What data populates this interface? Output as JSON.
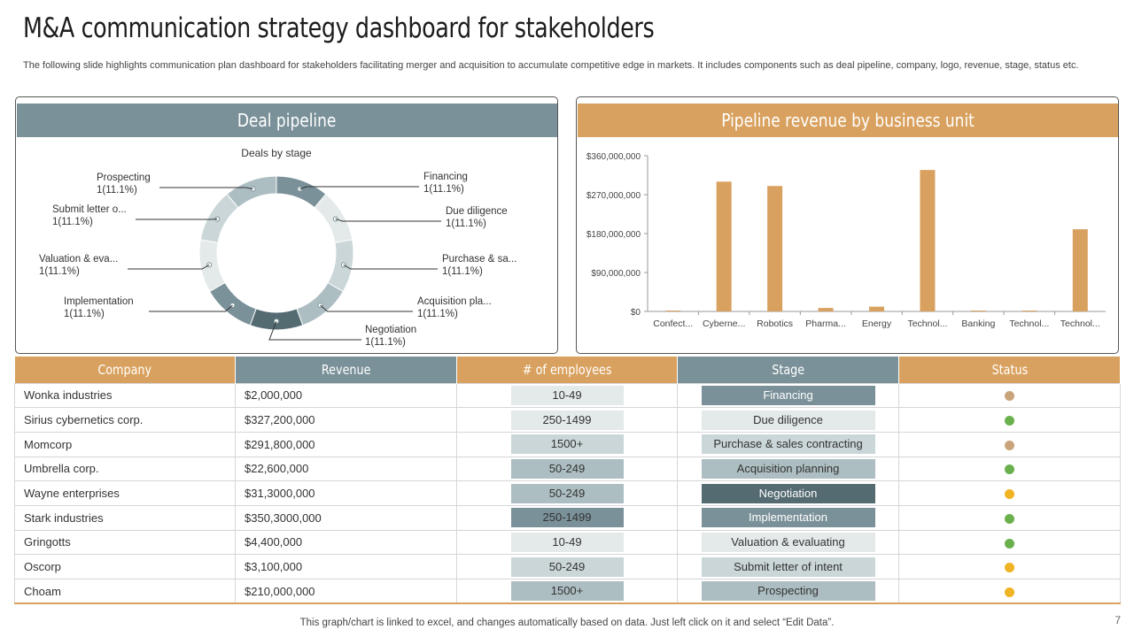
{
  "title": "M&A communication strategy dashboard for stakeholders",
  "subtitle": "The following slide highlights communication plan dashboard for stakeholders facilitating merger and acquisition to accumulate competitive edge in markets. It includes components such as deal pipeline, company, logo, revenue, stage, status etc.",
  "deal_pipeline": {
    "header": "Deal pipeline",
    "chart_title": "Deals by stage"
  },
  "revenue_panel": {
    "header": "Pipeline revenue by business unit"
  },
  "chart_data": [
    {
      "type": "pie",
      "title": "Deals by stage",
      "slices": [
        {
          "label": "Financing",
          "value": 1,
          "pct": "1(11.1%)",
          "color": "#7a9199"
        },
        {
          "label": "Due diligence",
          "value": 1,
          "pct": "1(11.1%)",
          "color": "#e4e9ea"
        },
        {
          "label": "Purchase & sa...",
          "value": 1,
          "pct": "1(11.1%)",
          "color": "#cad6d8"
        },
        {
          "label": "Acquisition pla...",
          "value": 1,
          "pct": "1(11.1%)",
          "color": "#adbec2"
        },
        {
          "label": "Negotiation",
          "value": 1,
          "pct": "1(11.1%)",
          "color": "#546b72"
        },
        {
          "label": "Implementation",
          "value": 1,
          "pct": "1(11.1%)",
          "color": "#7a9199"
        },
        {
          "label": "Valuation & eva...",
          "value": 1,
          "pct": "1(11.1%)",
          "color": "#e4e9ea"
        },
        {
          "label": "Submit letter o...",
          "value": 1,
          "pct": "1(11.1%)",
          "color": "#cad6d8"
        },
        {
          "label": "Prospecting",
          "value": 1,
          "pct": "1(11.1%)",
          "color": "#adbec2"
        }
      ]
    },
    {
      "type": "bar",
      "title": "Pipeline revenue by business unit",
      "categories": [
        "Confect...",
        "Cyberne...",
        "Robotics",
        "Pharma...",
        "Energy",
        "Technol...",
        "Banking",
        "Technol...",
        "Technol..."
      ],
      "values": [
        2000000,
        300000000,
        290000000,
        8000000,
        11000000,
        327000000,
        2000000,
        2000000,
        190000000
      ],
      "ylim": [
        0,
        360000000
      ],
      "yticks": [
        0,
        90000000,
        180000000,
        270000000,
        360000000
      ],
      "ytick_labels": [
        "$0",
        "$90,000,000",
        "$180,000,000",
        "$270,000,000",
        "$360,000,000"
      ],
      "color": "#d9a15f"
    }
  ],
  "table": {
    "headers": [
      "Company",
      "Revenue",
      "# of employees",
      "Stage",
      "Status"
    ],
    "rows": [
      {
        "company": "Wonka industries",
        "revenue": "$2,000,000",
        "employees": "10-49",
        "emp_color": "#e4e9ea",
        "stage": "Financing",
        "stage_color": "#7a9199",
        "stage_text": "#ffffff",
        "status_color": "#c9a37c"
      },
      {
        "company": "Sirius cybernetics corp.",
        "revenue": "$327,200,000",
        "employees": "250-1499",
        "emp_color": "#e4e9ea",
        "stage": "Due diligence",
        "stage_color": "#e4e9ea",
        "stage_text": "#333333",
        "status_color": "#6ab04c"
      },
      {
        "company": "Momcorp",
        "revenue": "$291,800,000",
        "employees": "1500+",
        "emp_color": "#cad6d8",
        "stage": "Purchase & sales contracting",
        "stage_color": "#cad6d8",
        "stage_text": "#333333",
        "status_color": "#c9a37c"
      },
      {
        "company": "Umbrella corp.",
        "revenue": "$22,600,000",
        "employees": "50-249",
        "emp_color": "#adbec2",
        "stage": "Acquisition planning",
        "stage_color": "#adbec2",
        "stage_text": "#333333",
        "status_color": "#6ab04c"
      },
      {
        "company": "Wayne enterprises",
        "revenue": "$31,3000,000",
        "employees": "50-249",
        "emp_color": "#adbec2",
        "stage": "Negotiation",
        "stage_color": "#546b72",
        "stage_text": "#ffffff",
        "status_color": "#f0b323"
      },
      {
        "company": "Stark industries",
        "revenue": "$350,3000,000",
        "employees": "250-1499",
        "emp_color": "#7a9199",
        "stage": "Implementation",
        "stage_color": "#7a9199",
        "stage_text": "#ffffff",
        "status_color": "#6ab04c"
      },
      {
        "company": "Gringotts",
        "revenue": "$4,400,000",
        "employees": "10-49",
        "emp_color": "#e4e9ea",
        "stage": "Valuation & evaluating",
        "stage_color": "#e4e9ea",
        "stage_text": "#333333",
        "status_color": "#6ab04c"
      },
      {
        "company": "Oscorp",
        "revenue": "$3,100,000",
        "employees": "50-249",
        "emp_color": "#cad6d8",
        "stage": "Submit letter of intent",
        "stage_color": "#cad6d8",
        "stage_text": "#333333",
        "status_color": "#f0b323"
      },
      {
        "company": "Choam",
        "revenue": "$210,000,000",
        "employees": "1500+",
        "emp_color": "#adbec2",
        "stage": "Prospecting",
        "stage_color": "#adbec2",
        "stage_text": "#333333",
        "status_color": "#f0b323"
      }
    ]
  },
  "footer": "This graph/chart is linked to excel, and changes automatically based on data. Just left click on it and select “Edit Data”.",
  "page_number": "7"
}
